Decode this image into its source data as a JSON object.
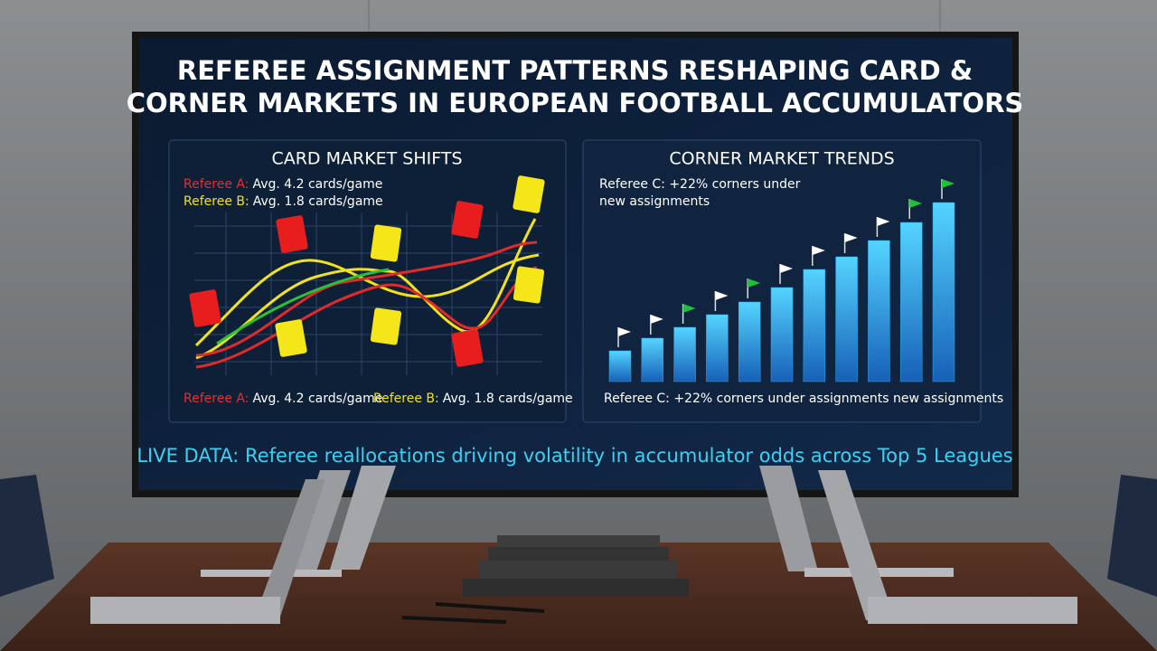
{
  "screen": {
    "title_lines": [
      "REFEREE ASSIGNMENT PATTERNS RESHAPING CARD &",
      "CORNER MARKETS IN EUROPEAN FOOTBALL ACCUMULATORS"
    ],
    "card_panel": {
      "title": "CARD MARKET SHIFTS",
      "legend": [
        {
          "label": "Referee A:",
          "text": "Avg. 4.2 cards/game",
          "color": "#ee2a2a"
        },
        {
          "label": "Referee B:",
          "text": "Avg. 1.8 cards/game",
          "color": "#f2e21c"
        }
      ]
    },
    "corner_panel": {
      "title": "CORNER MARKET TRENDS",
      "note_lines": [
        "Referee C: +22% corners under",
        "new assignments"
      ],
      "footer": "Referee C: +22% corners under assignments new assignments",
      "values": [
        17,
        24,
        30,
        37,
        44,
        52,
        62,
        69,
        78,
        88,
        99
      ],
      "bar_color": "#2aa8e8",
      "flag_colors": [
        "#ffffff",
        "#ffffff",
        "#22c03a",
        "#ffffff",
        "#22c03a",
        "#ffffff",
        "#ffffff",
        "#ffffff",
        "#ffffff",
        "#22c03a",
        "#22c03a"
      ]
    },
    "ticker": "LIVE DATA: Referee reallocations driving volatility in accumulator odds across Top 5 Leagues"
  }
}
